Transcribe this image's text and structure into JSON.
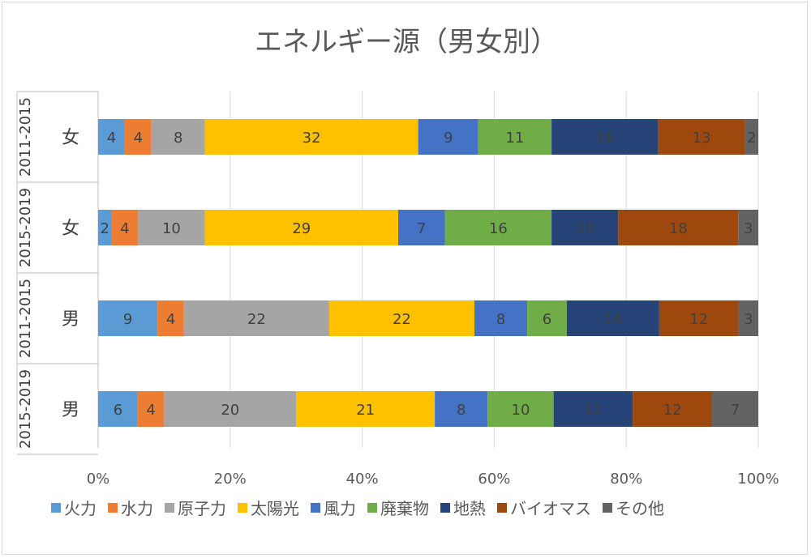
{
  "chart_data": {
    "type": "bar",
    "orientation": "horizontal",
    "stacked": "percent",
    "title": "エネルギー源（男女別）",
    "categories": [
      {
        "group": "2011-2015",
        "label": "女"
      },
      {
        "group": "2015-2019",
        "label": "女"
      },
      {
        "group": "2011-2015",
        "label": "男"
      },
      {
        "group": "2015-2019",
        "label": "男"
      }
    ],
    "series": [
      {
        "name": "火力",
        "color": "#5b9bd5",
        "values": [
          4,
          2,
          9,
          6
        ]
      },
      {
        "name": "水力",
        "color": "#ed7d31",
        "values": [
          4,
          4,
          4,
          4
        ]
      },
      {
        "name": "原子力",
        "color": "#a5a5a5",
        "values": [
          8,
          10,
          22,
          20
        ]
      },
      {
        "name": "太陽光",
        "color": "#ffc000",
        "values": [
          32,
          29,
          22,
          21
        ]
      },
      {
        "name": "風力",
        "color": "#4472c4",
        "values": [
          9,
          7,
          8,
          8
        ]
      },
      {
        "name": "廃棄物",
        "color": "#70ad47",
        "values": [
          11,
          16,
          6,
          10
        ]
      },
      {
        "name": "地熱",
        "color": "#264478",
        "values": [
          16,
          10,
          14,
          12
        ]
      },
      {
        "name": "バイオマス",
        "color": "#9e480e",
        "values": [
          13,
          18,
          12,
          12
        ]
      },
      {
        "name": "その他",
        "color": "#636363",
        "values": [
          2,
          3,
          3,
          7
        ]
      }
    ],
    "x_ticks": [
      "0%",
      "20%",
      "40%",
      "60%",
      "80%",
      "100%"
    ],
    "xlim": [
      0,
      100
    ],
    "grid": true,
    "legend_position": "bottom"
  }
}
